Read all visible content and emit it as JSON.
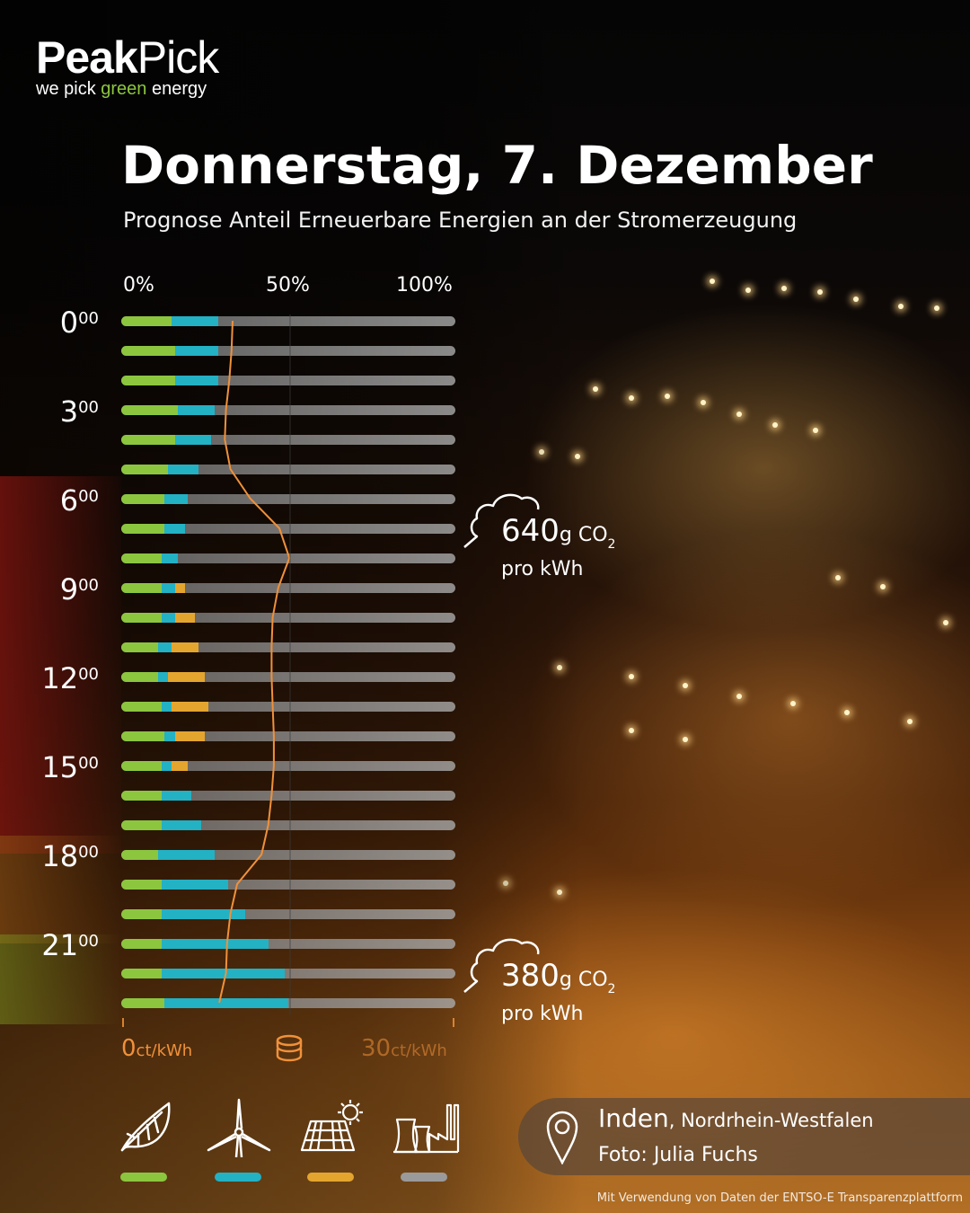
{
  "brand": {
    "name_bold": "Peak",
    "name_light": "Pick",
    "tagline_before": "we pick ",
    "tagline_green": "green",
    "tagline_after": " energy",
    "green_color": "#8cc63f"
  },
  "header": {
    "title": "Donnerstag, 7. Dezember",
    "subtitle": "Prognose Anteil Erneuerbare Energien an der Stromerzeugung"
  },
  "scale": {
    "p0": "0%",
    "p50": "50%",
    "p100": "100%"
  },
  "hours": [
    {
      "h": "0",
      "m": "00"
    },
    {
      "h": "3",
      "m": "00"
    },
    {
      "h": "6",
      "m": "00"
    },
    {
      "h": "9",
      "m": "00"
    },
    {
      "h": "12",
      "m": "00"
    },
    {
      "h": "15",
      "m": "00"
    },
    {
      "h": "18",
      "m": "00"
    },
    {
      "h": "21",
      "m": "00"
    }
  ],
  "chart_data": {
    "type": "bar",
    "orientation": "horizontal-stacked",
    "x_range_percent": [
      0,
      100
    ],
    "categories_hours": [
      0,
      1,
      2,
      3,
      4,
      5,
      6,
      7,
      8,
      9,
      10,
      11,
      12,
      13,
      14,
      15,
      16,
      17,
      18,
      19,
      20,
      21,
      22,
      23
    ],
    "colors": {
      "biomass": "#8cc63f",
      "wind": "#23b1c4",
      "solar": "#e4a52f",
      "conventional": "#9a9a9a",
      "price": "#f0913a"
    },
    "series": [
      {
        "key": "biomass",
        "values": [
          15,
          16,
          16,
          17,
          16,
          14,
          13,
          13,
          12,
          12,
          12,
          11,
          11,
          12,
          13,
          12,
          12,
          12,
          11,
          12,
          12,
          12,
          12,
          13
        ]
      },
      {
        "key": "wind",
        "values": [
          14,
          13,
          13,
          11,
          11,
          9,
          7,
          6,
          5,
          4,
          4,
          4,
          3,
          3,
          3,
          3,
          9,
          12,
          17,
          20,
          25,
          32,
          37,
          37
        ]
      },
      {
        "key": "solar",
        "values": [
          0,
          0,
          0,
          0,
          0,
          0,
          0,
          0,
          0,
          3,
          6,
          8,
          11,
          11,
          9,
          5,
          0,
          0,
          0,
          0,
          0,
          0,
          0,
          0
        ]
      }
    ],
    "price_ct_per_kwh": {
      "range": [
        0,
        30
      ],
      "values": [
        10.0,
        9.9,
        9.7,
        9.4,
        9.3,
        9.8,
        11.6,
        14.2,
        15.1,
        14.1,
        13.6,
        13.5,
        13.5,
        13.6,
        13.7,
        13.7,
        13.5,
        13.2,
        12.6,
        10.4,
        9.8,
        9.5,
        9.4,
        8.8
      ]
    },
    "price_axis": {
      "min_label": "0",
      "max_label": "30",
      "unit": "ct/kWh"
    }
  },
  "co2": [
    {
      "value": "640",
      "unit": "g CO",
      "sub": "2",
      "per": "pro kWh"
    },
    {
      "value": "380",
      "unit": "g CO",
      "sub": "2",
      "per": "pro kWh"
    }
  ],
  "legend": [
    {
      "icon": "leaf-icon",
      "color": "#8cc63f"
    },
    {
      "icon": "wind-turbine-icon",
      "color": "#23b1c4"
    },
    {
      "icon": "solar-panel-icon",
      "color": "#e4a52f"
    },
    {
      "icon": "power-plant-icon",
      "color": "#9a9a9a"
    }
  ],
  "location": {
    "city": "Inden",
    "region": ", Nordrhein-Westfalen",
    "photo": "Foto: Julia Fuchs"
  },
  "footnote": "Mit Verwendung von Daten der ENTSO-E Transparenzplattform"
}
